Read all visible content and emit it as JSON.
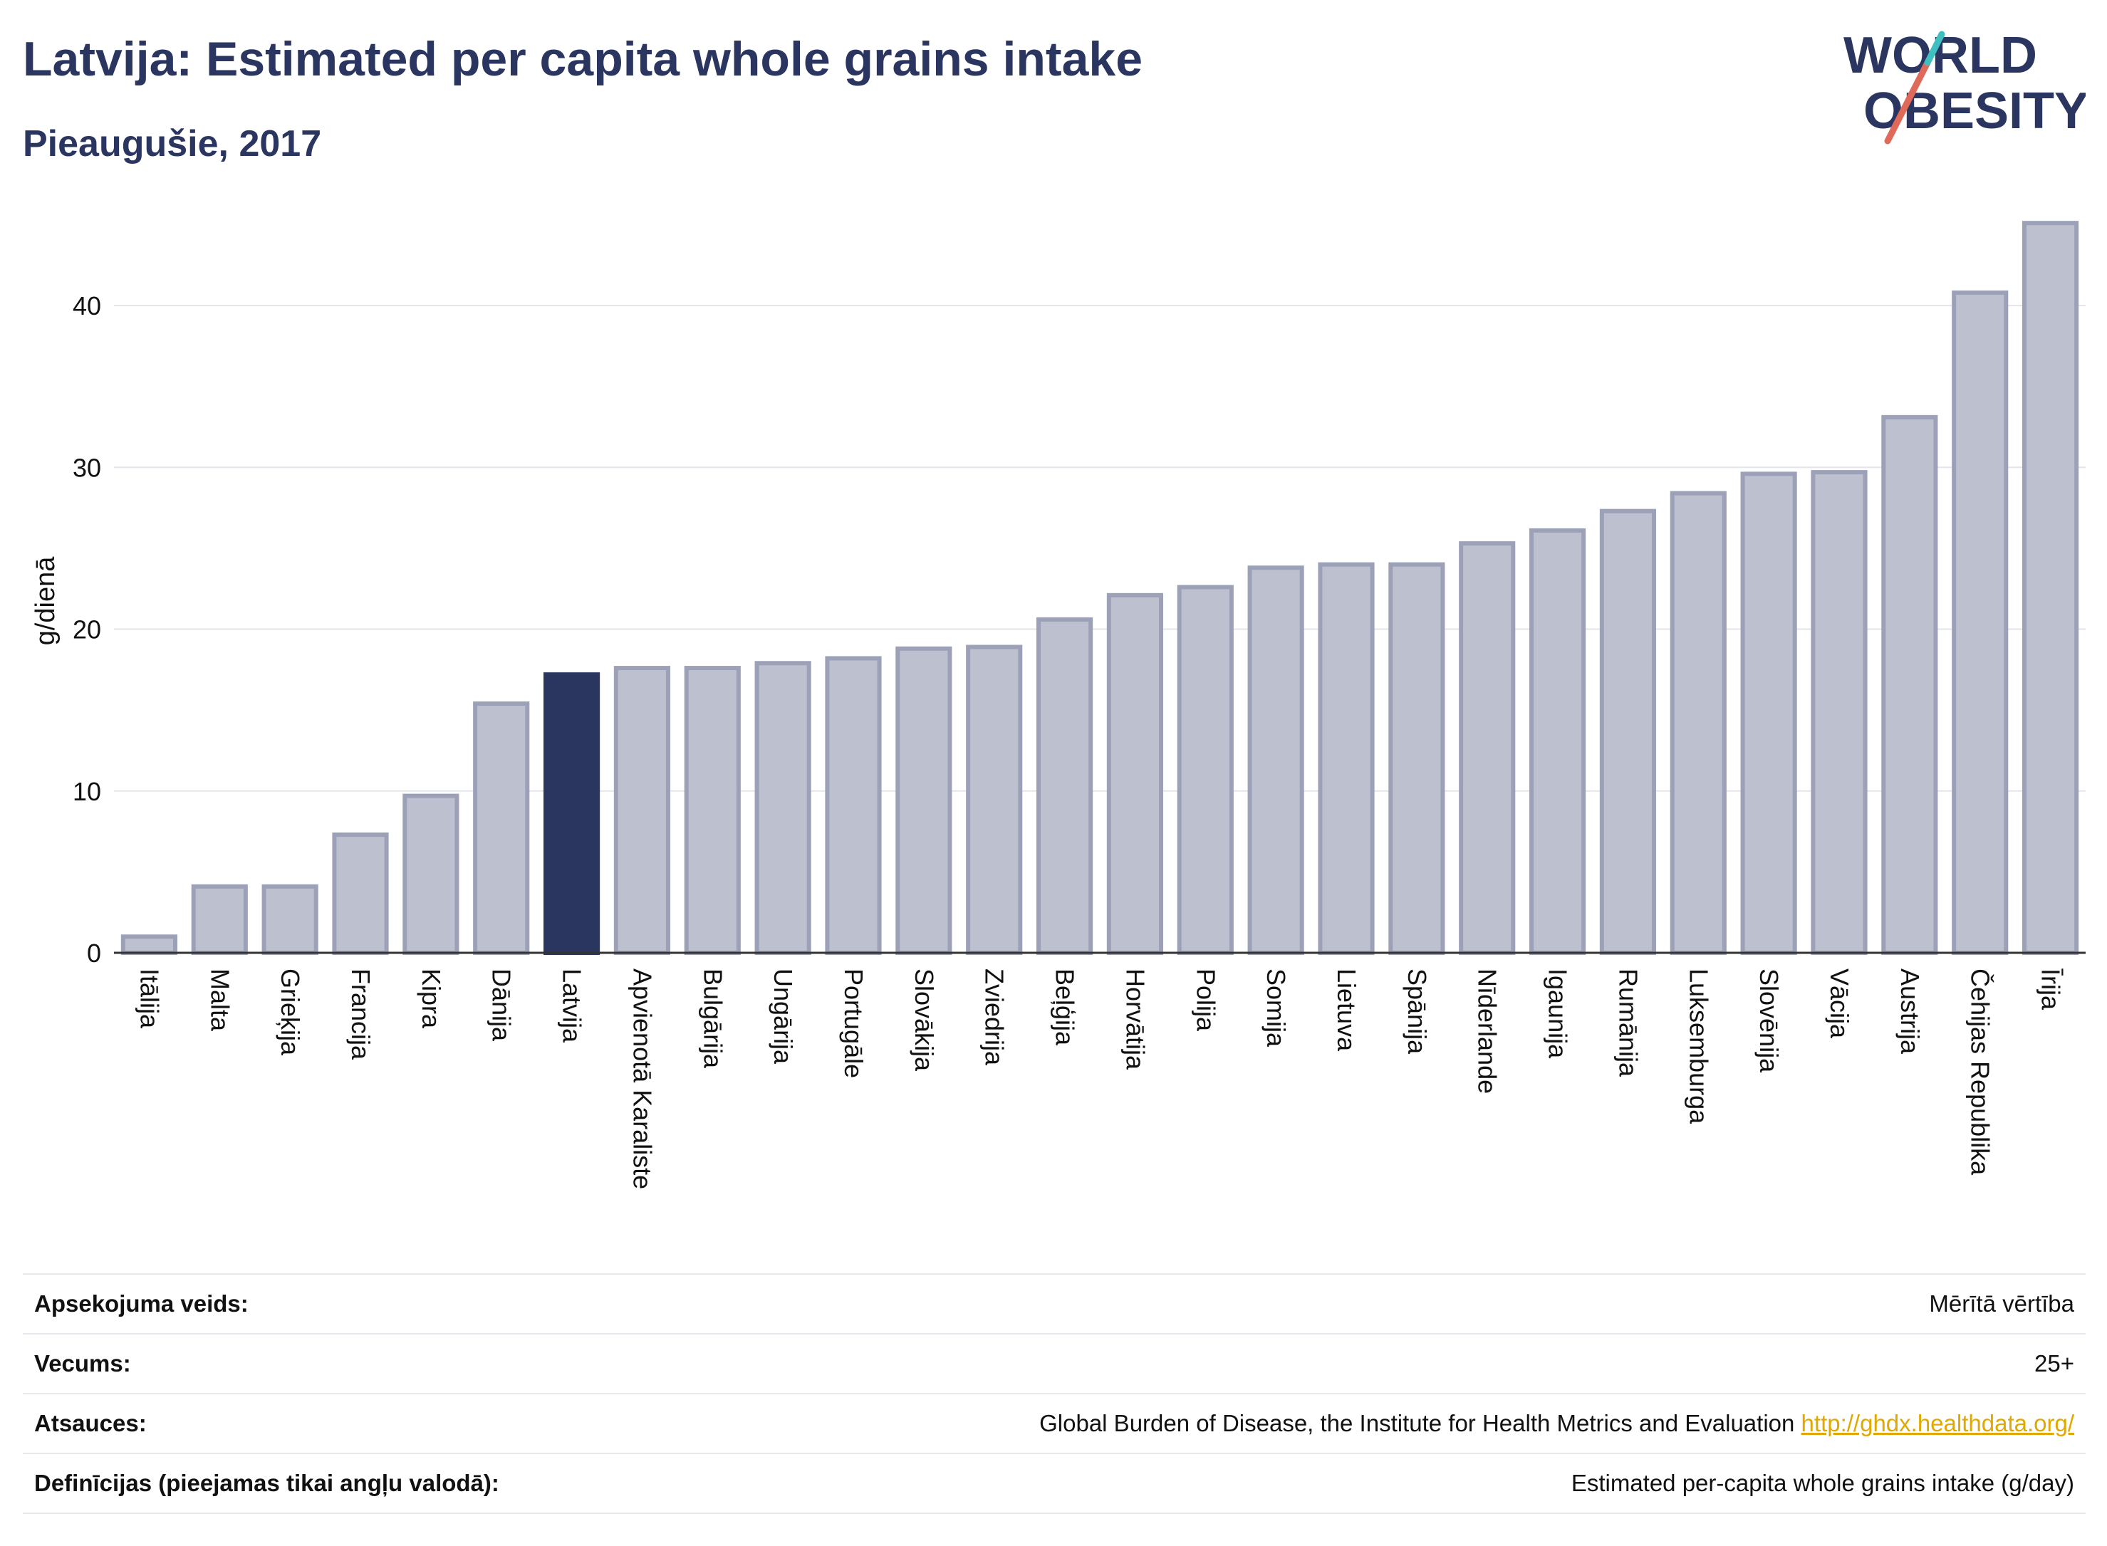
{
  "header": {
    "title": "Latvija: Estimated per capita whole grains intake",
    "subtitle": "Pieaugušie, 2017"
  },
  "logo": {
    "line1": "WORLD",
    "line2": "OBESITY",
    "colors": {
      "text": "#2a3560",
      "slash_teal": "#3fbfbf",
      "slash_red": "#e06a5a"
    }
  },
  "chart_data": {
    "type": "bar",
    "ylabel": "g/dienā",
    "ylim": [
      0,
      47
    ],
    "yticks": [
      0,
      10,
      20,
      30,
      40
    ],
    "grid": true,
    "highlight": "Latvija",
    "colors": {
      "bar": "#bcc0cf",
      "bar_edge": "#9ca1b8",
      "highlight": "#2a3560"
    },
    "categories": [
      "Itālija",
      "Malta",
      "Grieķija",
      "Francija",
      "Kipra",
      "Dānija",
      "Latvija",
      "Apvienotā Karaliste",
      "Bulgārija",
      "Ungārija",
      "Portugāle",
      "Slovākija",
      "Zviedrija",
      "Beļģija",
      "Horvātija",
      "Polija",
      "Somija",
      "Lietuva",
      "Spānija",
      "Nīderlande",
      "Igaunija",
      "Rumānija",
      "Luksemburga",
      "Slovēnija",
      "Vācija",
      "Austrija",
      "Čehijas Republika",
      "Īrija"
    ],
    "values": [
      1.0,
      4.1,
      4.1,
      7.3,
      9.7,
      15.4,
      17.2,
      17.6,
      17.6,
      17.9,
      18.2,
      18.8,
      18.9,
      20.6,
      22.1,
      22.6,
      23.8,
      24.0,
      24.0,
      25.3,
      26.1,
      27.3,
      28.4,
      29.6,
      29.7,
      33.1,
      40.8,
      45.1
    ]
  },
  "meta": [
    {
      "key": "Apsekojuma veids:",
      "value": "Mērītā vērtība"
    },
    {
      "key": "Vecums:",
      "value": "25+"
    },
    {
      "key": "Atsauces:",
      "value": "Global Burden of Disease, the Institute for Health Metrics and Evaluation",
      "link": "http://ghdx.healthdata.org/"
    },
    {
      "key": "Definīcijas (pieejamas tikai angļu valodā):",
      "value": "Estimated per-capita whole grains intake (g/day)"
    }
  ]
}
